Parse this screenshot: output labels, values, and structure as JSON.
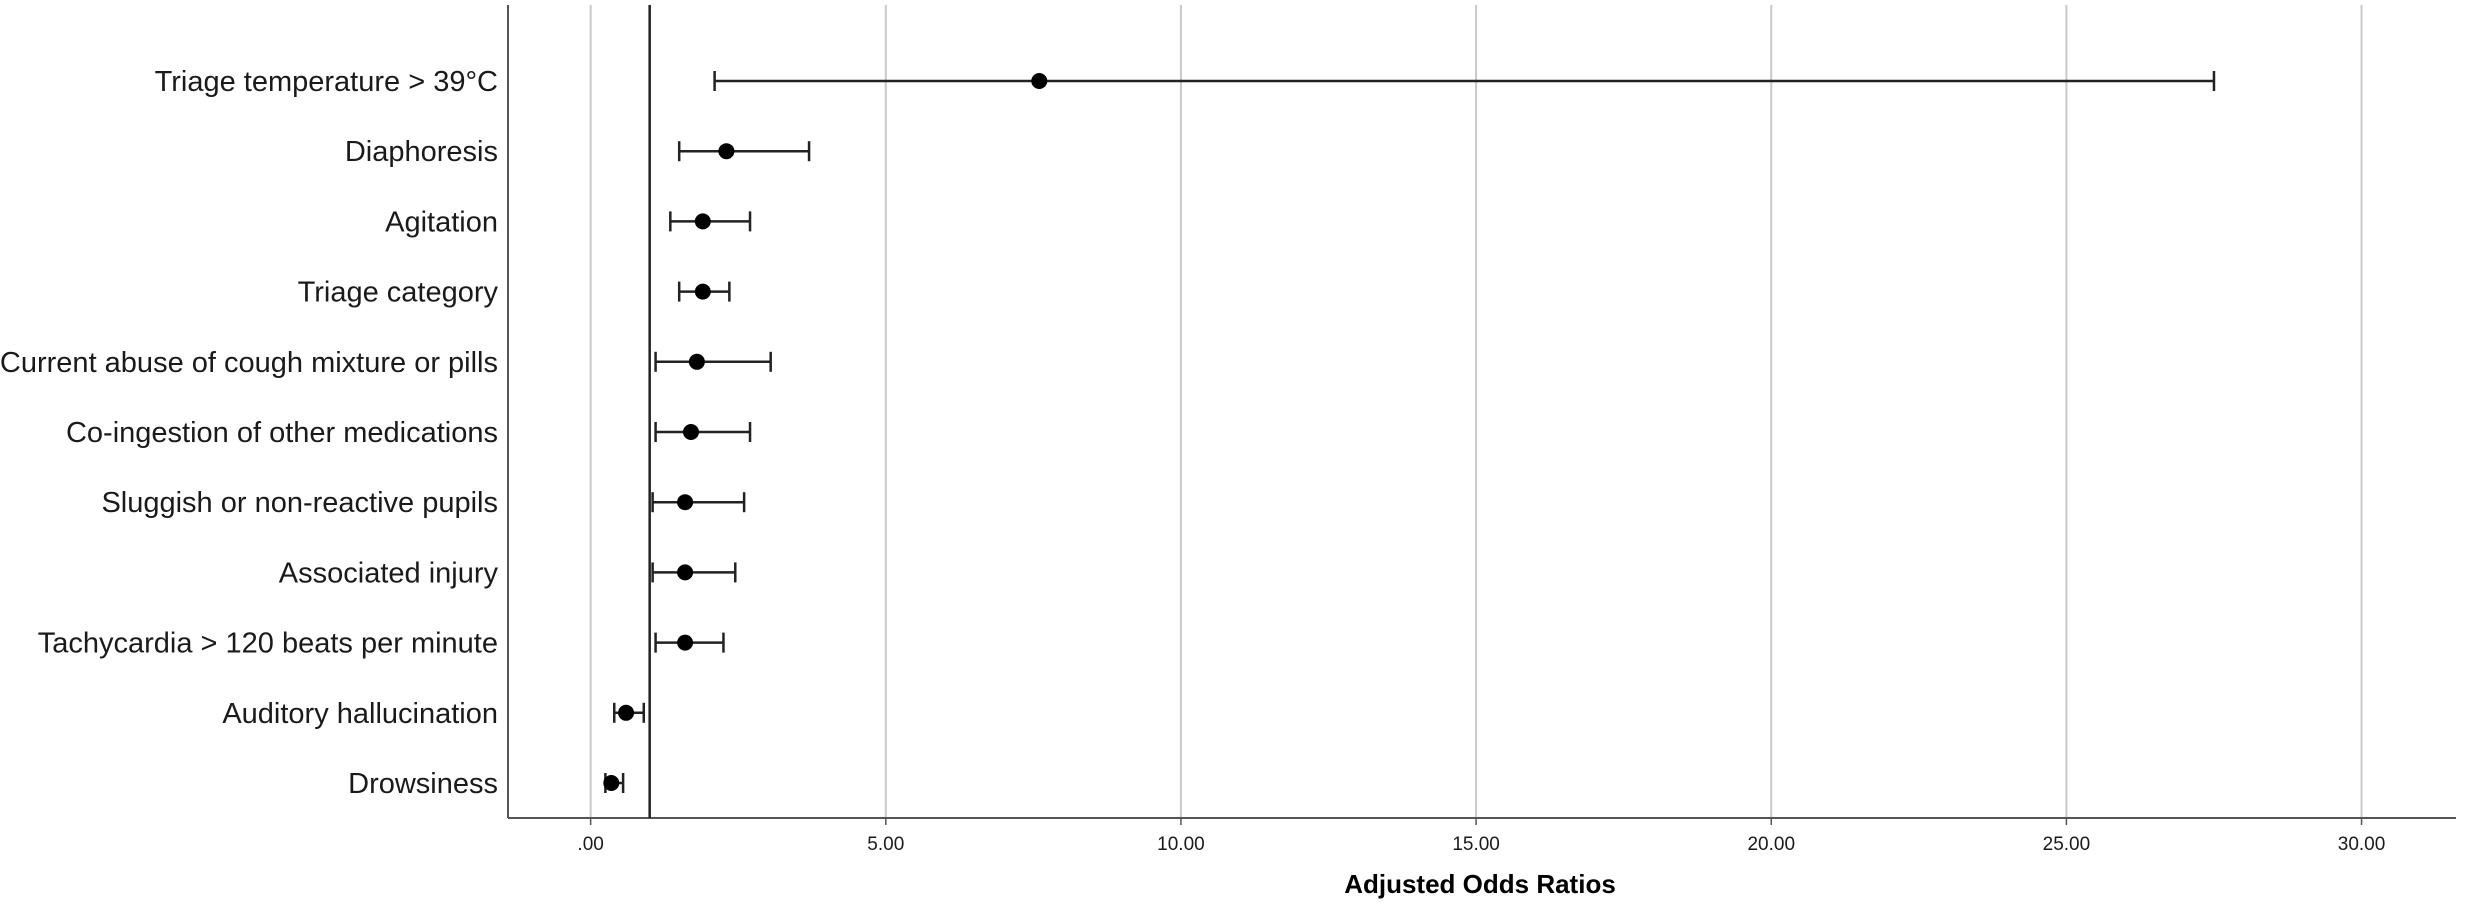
{
  "chart_data": {
    "type": "scatter",
    "subtype": "forest-plot",
    "title": "",
    "xlabel": "Adjusted Odds Ratios",
    "ylabel": "",
    "xlim": [
      -1.4,
      31.6
    ],
    "xticks": [
      0,
      5,
      10,
      15,
      20,
      25,
      30
    ],
    "xtick_labels": [
      ".00",
      "5.00",
      "10.00",
      "15.00",
      "20.00",
      "25.00",
      "30.00"
    ],
    "reference_line": 1,
    "grid": "vertical",
    "legend": "none",
    "categories": [
      "Triage temperature > 39°C",
      "Diaphoresis",
      "Agitation",
      "Triage category",
      "Current abuse of cough mixture or pills",
      "Co-ingestion of other medications",
      "Sluggish or non-reactive pupils",
      "Associated injury",
      "Tachycardia > 120 beats per minute",
      "Auditory hallucination",
      "Drowsiness"
    ],
    "series": [
      {
        "values": [
          7.6,
          2.3,
          1.9,
          1.9,
          1.8,
          1.7,
          1.6,
          1.6,
          1.6,
          0.6,
          0.35
        ],
        "lower": [
          2.1,
          1.5,
          1.35,
          1.5,
          1.1,
          1.1,
          1.05,
          1.05,
          1.1,
          0.4,
          0.25
        ],
        "upper": [
          27.5,
          3.7,
          2.7,
          2.35,
          3.05,
          2.7,
          2.6,
          2.45,
          2.25,
          0.9,
          0.55
        ]
      }
    ]
  },
  "colors": {
    "grid": "#c9c9c9",
    "axis": "#555555",
    "reference_line": "#222222",
    "marker": "#000000",
    "error_bar": "#222222"
  }
}
